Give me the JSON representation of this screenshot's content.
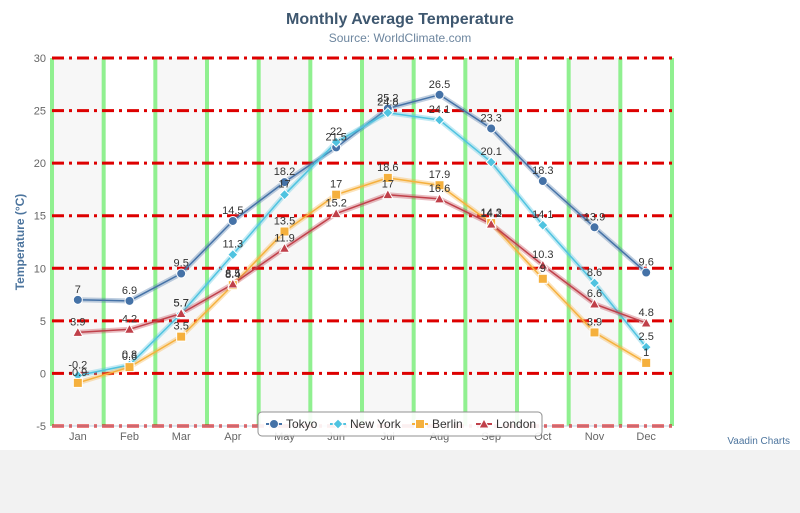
{
  "chart_data": {
    "type": "line",
    "title": "Monthly Average Temperature",
    "subtitle": "Source: WorldClimate.com",
    "ylabel": "Temperature (°C)",
    "xlabel": "",
    "ylim": [
      -5,
      30
    ],
    "yticks": [
      -5,
      0,
      5,
      10,
      15,
      20,
      25,
      30
    ],
    "categories": [
      "Jan",
      "Feb",
      "Mar",
      "Apr",
      "May",
      "Jun",
      "Jul",
      "Aug",
      "Sep",
      "Oct",
      "Nov",
      "Dec"
    ],
    "grid": {
      "horizontal": "dash-dot",
      "horizontal_color": "#dd0000",
      "vertical_band_color": "#90f090",
      "plot_band_color": "#f7f7f7"
    },
    "legend": "bottom-center",
    "series": [
      {
        "name": "Tokyo",
        "color": "#4572a7",
        "marker": "circle",
        "values": [
          7.0,
          6.9,
          9.5,
          14.5,
          18.2,
          21.5,
          25.2,
          26.5,
          23.3,
          18.3,
          13.9,
          9.6
        ],
        "labels": [
          "7",
          "6.9",
          "9.5",
          "14.5",
          "18.2",
          "21.5",
          "25.2",
          "26.5",
          "23.3",
          "18.3",
          "13.9",
          "9.6"
        ]
      },
      {
        "name": "New York",
        "color": "#4fc3e0",
        "marker": "diamond",
        "values": [
          -0.2,
          0.8,
          5.7,
          11.3,
          17.0,
          22.0,
          24.8,
          24.1,
          20.1,
          14.1,
          8.6,
          2.5
        ],
        "labels": [
          "-0.2",
          "0.8",
          "5.7",
          "11.3",
          "17",
          "22",
          "24.8",
          "24.1",
          "20.1",
          "14.1",
          "8.6",
          "2.5"
        ]
      },
      {
        "name": "Berlin",
        "color": "#f5b03d",
        "marker": "square",
        "values": [
          -0.9,
          0.6,
          3.5,
          8.4,
          13.5,
          17.0,
          18.6,
          17.9,
          14.3,
          9.0,
          3.9,
          1.0
        ],
        "labels": [
          "-0.9",
          "0.6",
          "3.5",
          "8.4",
          "13.5",
          "17",
          "18.6",
          "17.9",
          "14.3",
          "9",
          "3.9",
          "1"
        ]
      },
      {
        "name": "London",
        "color": "#c0404a",
        "marker": "triangle",
        "values": [
          3.9,
          4.2,
          5.7,
          8.5,
          11.9,
          15.2,
          17.0,
          16.6,
          14.2,
          10.3,
          6.6,
          4.8
        ],
        "labels": [
          "3.9",
          "4.2",
          "5.7",
          "8.5",
          "11.9",
          "15.2",
          "17",
          "16.6",
          "14.2",
          "10.3",
          "6.6",
          "4.8"
        ]
      }
    ]
  },
  "credit": "Vaadin Charts"
}
